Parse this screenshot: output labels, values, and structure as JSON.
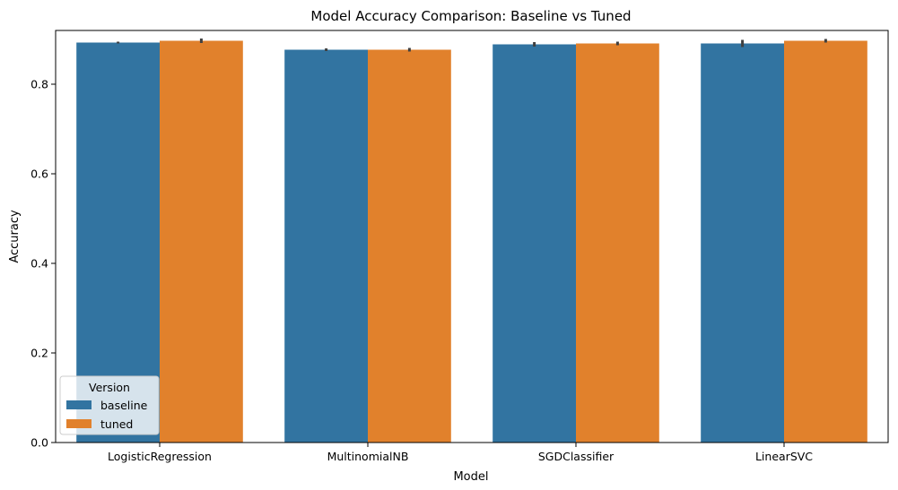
{
  "chart_data": {
    "type": "bar",
    "title": "Model Accuracy Comparison: Baseline vs Tuned",
    "xlabel": "Model",
    "ylabel": "Accuracy",
    "ylim": [
      0,
      0.92
    ],
    "yticks": [
      0.0,
      0.2,
      0.4,
      0.6,
      0.8
    ],
    "ytick_labels": [
      "0.0",
      "0.2",
      "0.4",
      "0.6",
      "0.8"
    ],
    "categories": [
      "LogisticRegression",
      "MultinomialNB",
      "SGDClassifier",
      "LinearSVC"
    ],
    "series": [
      {
        "name": "baseline",
        "color": "#3274a1",
        "values": [
          0.893,
          0.877,
          0.889,
          0.891
        ],
        "error_low": [
          0.891,
          0.874,
          0.884,
          0.883
        ],
        "error_high": [
          0.895,
          0.88,
          0.894,
          0.899
        ]
      },
      {
        "name": "tuned",
        "color": "#e1812c",
        "values": [
          0.897,
          0.877,
          0.891,
          0.897
        ],
        "error_low": [
          0.892,
          0.873,
          0.887,
          0.893
        ],
        "error_high": [
          0.902,
          0.881,
          0.895,
          0.901
        ]
      }
    ],
    "legend": {
      "title": "Version",
      "placement": "lower-left"
    },
    "grid": false
  }
}
